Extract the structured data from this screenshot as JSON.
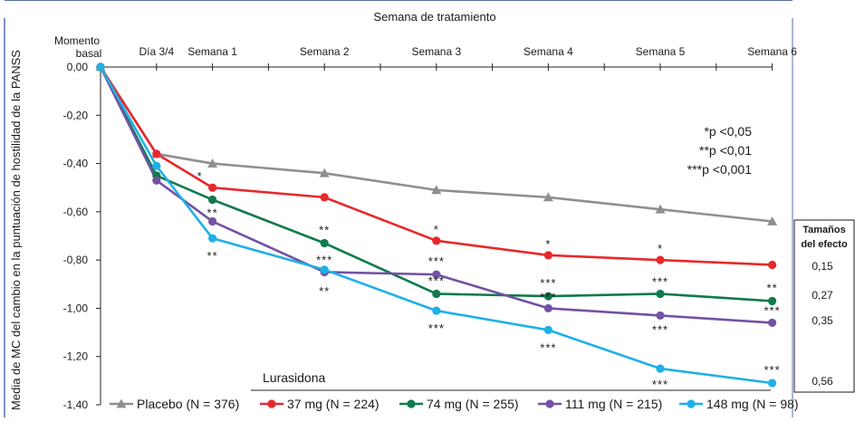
{
  "chart_data": {
    "type": "line",
    "xlabel_top": "Semana de tratamiento",
    "ylabel": "Media de MC del cambio en la puntuación de hostilidad de la PANSS",
    "x_positions": [
      0,
      1,
      2,
      4,
      6,
      8,
      10,
      12
    ],
    "x_tick_labels": [
      "Momento\nbasal",
      "Día 3/4",
      "Semana 1",
      "Semana 2",
      "Semana 3",
      "Semana 4",
      "Semana 5",
      "Semana 6"
    ],
    "ylim": [
      -1.4,
      0.0
    ],
    "y_ticks": [
      0.0,
      -0.2,
      -0.4,
      -0.6,
      -0.8,
      -1.0,
      -1.2,
      -1.4
    ],
    "y_tick_labels": [
      "0,00",
      "-0,20",
      "-0,40",
      "-0,60",
      "-0,80",
      "-1,00",
      "-1,20",
      "-1,40"
    ],
    "series": [
      {
        "name": "Placebo (N = 376)",
        "color": "#8f8f8f",
        "marker": "triangle",
        "x": [
          0,
          1,
          2,
          4,
          6,
          8,
          10,
          12
        ],
        "values": [
          0.0,
          -0.36,
          -0.4,
          -0.44,
          -0.51,
          -0.54,
          -0.59,
          -0.64
        ],
        "sig": [
          "",
          "",
          "",
          "",
          "",
          "",
          "",
          ""
        ]
      },
      {
        "name": "37 mg (N = 224)",
        "color": "#e8282b",
        "marker": "circle",
        "x": [
          0,
          1,
          2,
          4,
          6,
          8,
          10,
          12
        ],
        "values": [
          0.0,
          -0.36,
          -0.5,
          -0.54,
          -0.72,
          -0.78,
          -0.8,
          -0.82
        ],
        "sig": [
          "",
          "",
          "*",
          "",
          "*",
          "*",
          "*",
          ""
        ]
      },
      {
        "name": "74 mg (N = 255)",
        "color": "#0e7a4d",
        "marker": "circle",
        "x": [
          0,
          1,
          2,
          4,
          6,
          8,
          10,
          12
        ],
        "values": [
          0.0,
          -0.45,
          -0.55,
          -0.73,
          -0.94,
          -0.95,
          -0.94,
          -0.97
        ],
        "sig": [
          "",
          "",
          "**",
          "**",
          "***",
          "***",
          "***",
          "**"
        ]
      },
      {
        "name": "111 mg (N = 215)",
        "color": "#7352a3",
        "marker": "circle",
        "x": [
          0,
          1,
          2,
          4,
          6,
          8,
          10,
          12
        ],
        "values": [
          0.0,
          -0.47,
          -0.64,
          -0.85,
          -0.86,
          -1.0,
          -1.03,
          -1.06
        ],
        "sig": [
          "",
          "",
          "",
          "***",
          "***",
          "***",
          "***",
          "***"
        ]
      },
      {
        "name": "148 mg (N = 98)",
        "color": "#1fb0e6",
        "marker": "circle",
        "x": [
          0,
          1,
          2,
          4,
          6,
          8,
          10,
          12
        ],
        "values": [
          0.0,
          -0.41,
          -0.71,
          -0.84,
          -1.01,
          -1.09,
          -1.25,
          -1.31
        ],
        "sig": [
          "",
          "",
          "**",
          "**",
          "***",
          "***",
          "***",
          "***"
        ]
      }
    ],
    "legend_group_label": "Lurasidona",
    "legend_position": "bottom",
    "annotation_pvalues": [
      "*p <0,05",
      "**p <0,01",
      "***p <0,001"
    ],
    "effect_sizes": {
      "title_lines": [
        "Tamaños",
        "del efecto"
      ],
      "values": [
        "0,15",
        "0,27",
        "0,35",
        "0,56"
      ]
    }
  }
}
